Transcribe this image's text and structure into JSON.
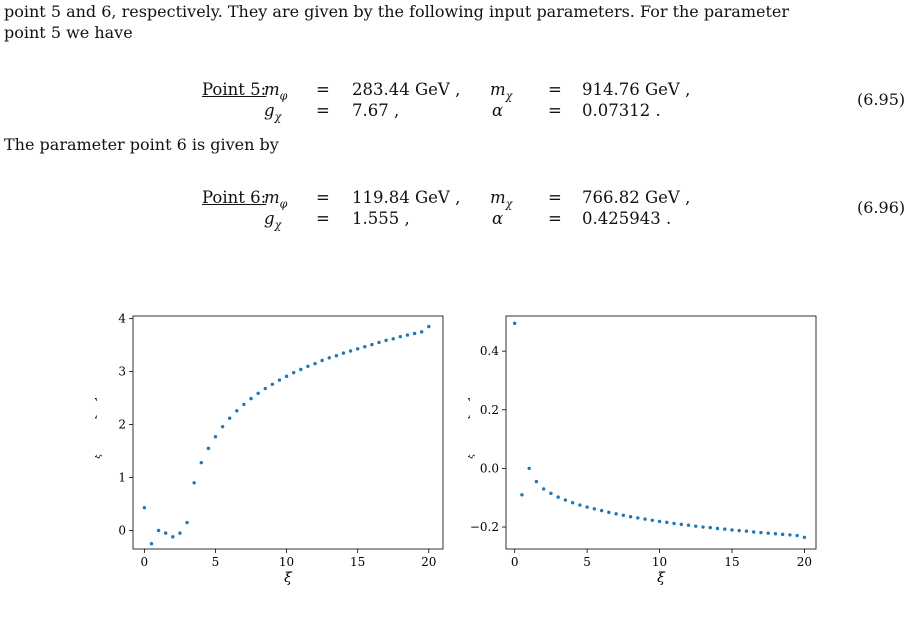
{
  "text": {
    "intro_line1": "point 5 and 6, respectively. They are given by the following input parameters. For the parameter",
    "intro_line2": "point 5 we have",
    "middle": "The parameter point 6 is given by"
  },
  "equations": [
    {
      "label": "Point 5:",
      "number": "(6.95)",
      "row1": {
        "var1": "m",
        "sub1": "φ",
        "eq1": "=",
        "val1": "283.44 GeV ,",
        "var2": "m",
        "sub2": "χ",
        "eq2": "=",
        "val2": "914.76 GeV ,"
      },
      "row2": {
        "var1": "g",
        "sub1": "χ",
        "eq1": "=",
        "val1": "7.67 ,",
        "var2": "α",
        "sub2": "",
        "eq2": "=",
        "val2": "0.07312 ."
      }
    },
    {
      "label": "Point 6:",
      "number": "(6.96)",
      "row1": {
        "var1": "m",
        "sub1": "φ",
        "eq1": "=",
        "val1": "119.84 GeV ,",
        "var2": "m",
        "sub2": "χ",
        "eq2": "=",
        "val2": "766.82 GeV ,"
      },
      "row2": {
        "var1": "g",
        "sub1": "χ",
        "eq1": "=",
        "val1": "1.555 ,",
        "var2": "α",
        "sub2": "",
        "eq2": "=",
        "val2": "0.425943 ."
      }
    }
  ],
  "chart_data": [
    {
      "type": "scatter",
      "title": "",
      "xlabel": "ξ",
      "ylabel": "Δ_ξσ^NLO [%]",
      "xlim": [
        -0.8,
        21
      ],
      "ylim": [
        -0.35,
        4.05
      ],
      "xticks": [
        0,
        5,
        10,
        15,
        20
      ],
      "yticks": [
        0,
        1,
        2,
        3,
        4
      ],
      "color": "#1f77b4",
      "x": [
        0,
        0.5,
        1,
        1.5,
        2,
        2.5,
        3,
        3.5,
        4,
        4.5,
        5,
        5.5,
        6,
        6.5,
        7,
        7.5,
        8,
        8.5,
        9,
        9.5,
        10,
        10.5,
        11,
        11.5,
        12,
        12.5,
        13,
        13.5,
        14,
        14.5,
        15,
        15.5,
        16,
        16.5,
        17,
        17.5,
        18,
        18.5,
        19,
        19.5,
        20
      ],
      "y": [
        0.43,
        -0.25,
        0.0,
        -0.05,
        -0.12,
        -0.05,
        0.15,
        0.9,
        1.28,
        1.55,
        1.77,
        1.96,
        2.12,
        2.26,
        2.38,
        2.49,
        2.59,
        2.68,
        2.76,
        2.84,
        2.91,
        2.98,
        3.04,
        3.1,
        3.15,
        3.21,
        3.26,
        3.3,
        3.35,
        3.39,
        3.43,
        3.47,
        3.51,
        3.55,
        3.59,
        3.62,
        3.66,
        3.69,
        3.72,
        3.75,
        3.85
      ]
    },
    {
      "type": "scatter",
      "title": "",
      "xlabel": "ξ",
      "ylabel": "Δ_ξσ^NLO [%]",
      "xlim": [
        -0.6,
        20.8
      ],
      "ylim": [
        -0.275,
        0.52
      ],
      "xticks": [
        0,
        5,
        10,
        15,
        20
      ],
      "yticks": [
        -0.2,
        0.0,
        0.2,
        0.4
      ],
      "ytick_labels": [
        "−0.2",
        "0.0",
        "0.2",
        "0.4"
      ],
      "color": "#1f77b4",
      "x": [
        0,
        0.5,
        1,
        1.5,
        2,
        2.5,
        3,
        3.5,
        4,
        4.5,
        5,
        5.5,
        6,
        6.5,
        7,
        7.5,
        8,
        8.5,
        9,
        9.5,
        10,
        10.5,
        11,
        11.5,
        12,
        12.5,
        13,
        13.5,
        14,
        14.5,
        15,
        15.5,
        16,
        16.5,
        17,
        17.5,
        18,
        18.5,
        19,
        19.5,
        20
      ],
      "y": [
        0.495,
        -0.09,
        0.0,
        -0.045,
        -0.07,
        -0.085,
        -0.098,
        -0.108,
        -0.117,
        -0.125,
        -0.132,
        -0.138,
        -0.144,
        -0.15,
        -0.155,
        -0.16,
        -0.165,
        -0.169,
        -0.173,
        -0.177,
        -0.181,
        -0.184,
        -0.188,
        -0.191,
        -0.194,
        -0.197,
        -0.2,
        -0.202,
        -0.205,
        -0.207,
        -0.21,
        -0.212,
        -0.214,
        -0.217,
        -0.219,
        -0.221,
        -0.223,
        -0.225,
        -0.227,
        -0.229,
        -0.235
      ]
    }
  ]
}
